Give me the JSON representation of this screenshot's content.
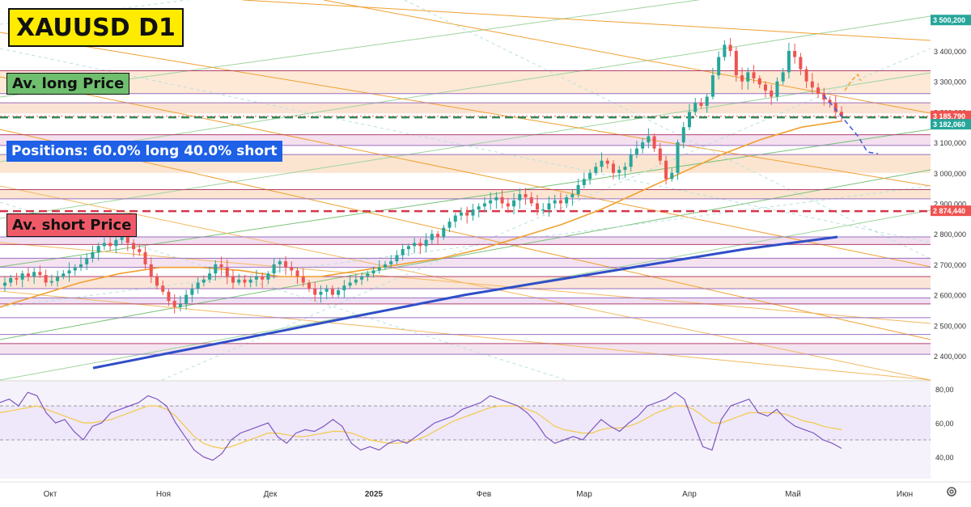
{
  "overlay": {
    "title": "XAUUSD D1",
    "long_label": "Av. long Price",
    "positions_label": "Positions: 60.0% long 40.0% short",
    "short_label": "Av. short Price"
  },
  "colors": {
    "long_box": "#6fbf6f",
    "short_box": "#f05a68",
    "positions_box": "#1e60e6",
    "title_box": "#ffeb00",
    "candle_up": "#26a69a",
    "candle_down": "#ef5350",
    "ma_fast": "#f0a030",
    "ma_slow": "#2f4fc8",
    "rsi_line": "#7e57c2",
    "rsi_signal": "#f3c94a"
  },
  "chart_data": [
    {
      "type": "candlestick",
      "symbol": "XAUUSD",
      "timeframe": "D1",
      "ylim": [
        2340000,
        3520000
      ],
      "y_ticks": [
        "3 500,200",
        "3 400,000",
        "3 300,000",
        "3 200,000",
        "3 100,000",
        "3 000,000",
        "2 900,000",
        "2 800,000",
        "2 700,000",
        "2 600,000",
        "2 500,000",
        "2 400,000"
      ],
      "y_tick_values": [
        3500200,
        3400000,
        3300000,
        3200000,
        3100000,
        3000000,
        2900000,
        2800000,
        2700000,
        2600000,
        2500000,
        2400000
      ],
      "x_ticks": [
        "Окт",
        "Ноя",
        "Дек",
        "2025",
        "Фев",
        "Мар",
        "Апр",
        "Май",
        "Июн"
      ],
      "price_labels": [
        {
          "text": "3 500,200",
          "value": 3500200,
          "color": "#26a69a"
        },
        {
          "text": "3 185,790",
          "value": 3185790,
          "color": "#ef5350"
        },
        {
          "text": "3 182,060",
          "value": 3182060,
          "color": "#26a69a"
        },
        {
          "text": "2 874,440",
          "value": 2874440,
          "color": "#ef5350"
        }
      ],
      "av_long_price": 3182060,
      "av_short_price": 2874440,
      "last_price": 3185790,
      "close_series_approx": [
        2640,
        2655,
        2650,
        2670,
        2660,
        2675,
        2665,
        2640,
        2645,
        2660,
        2670,
        2680,
        2690,
        2700,
        2720,
        2740,
        2760,
        2770,
        2760,
        2780,
        2790,
        2770,
        2750,
        2740,
        2700,
        2660,
        2630,
        2610,
        2580,
        2560,
        2570,
        2600,
        2620,
        2640,
        2650,
        2670,
        2700,
        2690,
        2660,
        2640,
        2650,
        2640,
        2650,
        2660,
        2650,
        2670,
        2700,
        2710,
        2690,
        2680,
        2660,
        2640,
        2620,
        2600,
        2610,
        2620,
        2600,
        2615,
        2630,
        2640,
        2650,
        2660,
        2670,
        2680,
        2690,
        2700,
        2710,
        2730,
        2750,
        2760,
        2770,
        2760,
        2780,
        2800,
        2790,
        2820,
        2840,
        2860,
        2870,
        2860,
        2880,
        2890,
        2900,
        2910,
        2920,
        2900,
        2890,
        2910,
        2930,
        2920,
        2900,
        2880,
        2880,
        2900,
        2910,
        2900,
        2920,
        2930,
        2960,
        2980,
        3000,
        3020,
        3040,
        3030,
        3000,
        3010,
        3020,
        3060,
        3080,
        3100,
        3120,
        3080,
        3040,
        2980,
        3000,
        3100,
        3150,
        3200,
        3230,
        3220,
        3250,
        3320,
        3380,
        3420,
        3400,
        3320,
        3300,
        3330,
        3310,
        3290,
        3270,
        3250,
        3300,
        3330,
        3400,
        3380,
        3340,
        3300,
        3280,
        3260,
        3240,
        3230,
        3200,
        3186
      ],
      "ma_fast_approx": [
        2560,
        2600,
        2640,
        2670,
        2690,
        2690,
        2680,
        2660,
        2660,
        2680,
        2700,
        2720,
        2750,
        2790,
        2830,
        2880,
        2940,
        3000,
        3060,
        3110,
        3150,
        3170
      ],
      "ma_slow_approx": [
        2360,
        2420,
        2480,
        2540,
        2600,
        2650,
        2700,
        2750,
        2790
      ]
    },
    {
      "type": "line",
      "name": "RSI",
      "ylim": [
        30,
        90
      ],
      "y_ticks": [
        "80,00",
        "60,00",
        "40,00"
      ],
      "y_tick_values": [
        80,
        60,
        40
      ],
      "levels": [
        70,
        50
      ],
      "values_approx": [
        72,
        74,
        70,
        78,
        76,
        66,
        60,
        62,
        55,
        50,
        58,
        60,
        66,
        68,
        70,
        72,
        76,
        74,
        70,
        60,
        52,
        44,
        40,
        38,
        42,
        50,
        54,
        56,
        58,
        60,
        52,
        48,
        54,
        56,
        55,
        58,
        62,
        58,
        48,
        44,
        46,
        44,
        48,
        50,
        48,
        52,
        56,
        60,
        62,
        64,
        68,
        70,
        72,
        76,
        74,
        72,
        70,
        66,
        60,
        52,
        48,
        50,
        52,
        50,
        56,
        62,
        58,
        55,
        60,
        64,
        70,
        72,
        74,
        78,
        74,
        60,
        46,
        44,
        62,
        70,
        72,
        74,
        66,
        64,
        68,
        62,
        58,
        56,
        54,
        50,
        48,
        45
      ],
      "signal_values_approx": [
        66,
        67,
        68,
        69,
        70,
        68,
        66,
        64,
        62,
        60,
        60,
        61,
        62,
        64,
        66,
        68,
        70,
        70,
        68,
        64,
        58,
        52,
        48,
        46,
        45,
        46,
        48,
        50,
        52,
        54,
        54,
        53,
        52,
        52,
        53,
        54,
        55,
        55,
        54,
        52,
        50,
        49,
        48,
        48,
        49,
        50,
        52,
        55,
        58,
        61,
        63,
        65,
        67,
        69,
        70,
        70,
        70,
        68,
        66,
        62,
        58,
        56,
        55,
        54,
        54,
        56,
        57,
        57,
        58,
        60,
        63,
        66,
        68,
        70,
        70,
        68,
        64,
        60,
        60,
        62,
        64,
        66,
        66,
        66,
        66,
        65,
        63,
        61,
        60,
        58,
        57,
        56
      ]
    }
  ]
}
